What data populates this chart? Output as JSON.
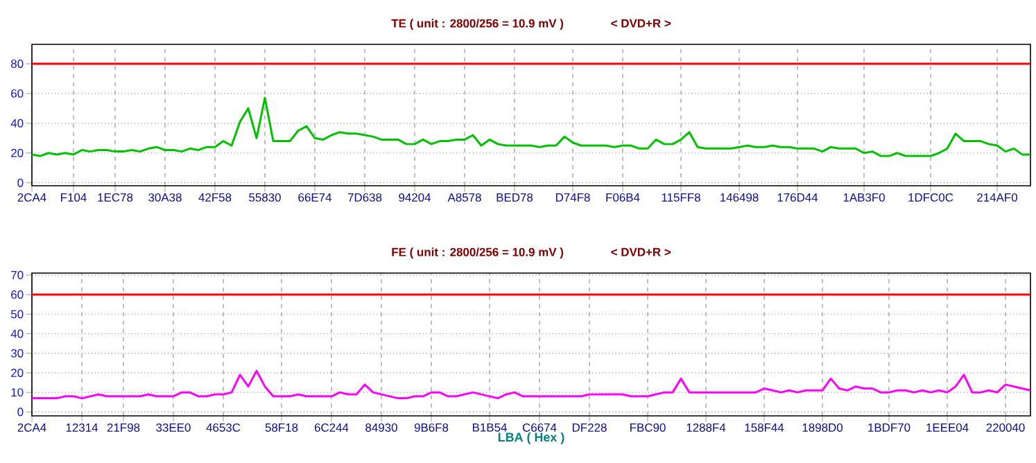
{
  "chart_data": [
    {
      "type": "line",
      "title": "TE   ( unit : 2800/256 = 10.9 mV )",
      "subtitle": "< DVD+R >",
      "categories": [
        "2CA4",
        null,
        null,
        null,
        null,
        "F104",
        null,
        null,
        null,
        null,
        "1EC78",
        null,
        null,
        null,
        null,
        null,
        "30A38",
        null,
        null,
        null,
        null,
        null,
        "42F58",
        null,
        null,
        null,
        null,
        null,
        "55830",
        null,
        null,
        null,
        null,
        null,
        "66E74",
        null,
        null,
        null,
        null,
        null,
        "7D638",
        null,
        null,
        null,
        null,
        null,
        "94204",
        null,
        null,
        null,
        null,
        null,
        "A8578",
        null,
        null,
        null,
        null,
        null,
        "BED78",
        null,
        null,
        null,
        null,
        null,
        null,
        "D74F8",
        null,
        null,
        null,
        null,
        null,
        "F06B4",
        null,
        null,
        null,
        null,
        null,
        null,
        "115FF8",
        null,
        null,
        null,
        null,
        null,
        null,
        "146498",
        null,
        null,
        null,
        null,
        null,
        null,
        "176D44",
        null,
        null,
        null,
        null,
        null,
        null,
        null,
        "1AB3F0",
        null,
        null,
        null,
        null,
        null,
        null,
        null,
        "1DFC0C",
        null,
        null,
        null,
        null,
        null,
        null,
        null,
        "214AF0",
        null,
        null,
        null,
        null
      ],
      "series": [
        {
          "color": "#00c000",
          "values": [
            19,
            18,
            20,
            19,
            20,
            19,
            22,
            21,
            22,
            22,
            21,
            21,
            22,
            21,
            23,
            24,
            22,
            22,
            21,
            23,
            22,
            24,
            24,
            28,
            25,
            41,
            50,
            30,
            57,
            28,
            28,
            28,
            35,
            38,
            30,
            29,
            32,
            34,
            33,
            33,
            32,
            31,
            29,
            29,
            29,
            26,
            26,
            29,
            26,
            28,
            28,
            29,
            29,
            32,
            25,
            29,
            26,
            25,
            25,
            25,
            25,
            24,
            25,
            25,
            31,
            27,
            25,
            25,
            25,
            25,
            24,
            25,
            25,
            23,
            23,
            29,
            26,
            26,
            29,
            34,
            24,
            23,
            23,
            23,
            23,
            24,
            25,
            24,
            24,
            25,
            24,
            24,
            23,
            23,
            23,
            21,
            24,
            23,
            23,
            23,
            20,
            21,
            18,
            18,
            20,
            18,
            18,
            18,
            18,
            20,
            23,
            33,
            28,
            28,
            28,
            26,
            25,
            21,
            23,
            19,
            19
          ]
        }
      ],
      "ylim": [
        -2,
        93
      ],
      "yticks": [
        0,
        20,
        40,
        60,
        80
      ],
      "grid": true,
      "ref_lines": [
        {
          "axis": "y",
          "value": 80,
          "color": "#ff0000"
        }
      ]
    },
    {
      "type": "line",
      "title": "FE   ( unit : 2800/256 = 10.9 mV )",
      "subtitle": "< DVD+R >",
      "xlabel": "LBA   ( Hex )",
      "categories": [
        "2CA4",
        null,
        null,
        null,
        null,
        null,
        "12314",
        null,
        null,
        null,
        null,
        "21F98",
        null,
        null,
        null,
        null,
        null,
        "33EE0",
        null,
        null,
        null,
        null,
        null,
        "4653C",
        null,
        null,
        null,
        null,
        null,
        null,
        "58F18",
        null,
        null,
        null,
        null,
        null,
        "6C244",
        null,
        null,
        null,
        null,
        null,
        "84930",
        null,
        null,
        null,
        null,
        null,
        "9B6F8",
        null,
        null,
        null,
        null,
        null,
        null,
        "B1B54",
        null,
        null,
        null,
        null,
        null,
        "C6674",
        null,
        null,
        null,
        null,
        null,
        "DF228",
        null,
        null,
        null,
        null,
        null,
        null,
        "FBC90",
        null,
        null,
        null,
        null,
        null,
        null,
        "1288F4",
        null,
        null,
        null,
        null,
        null,
        null,
        "158F44",
        null,
        null,
        null,
        null,
        null,
        null,
        "1898D0",
        null,
        null,
        null,
        null,
        null,
        null,
        null,
        "1BDF70",
        null,
        null,
        null,
        null,
        null,
        null,
        "1EEE04",
        null,
        null,
        null,
        null,
        null,
        null,
        "220040",
        null,
        null,
        null
      ],
      "series": [
        {
          "color": "#ff00ff",
          "values": [
            7,
            7,
            7,
            7,
            8,
            8,
            7,
            8,
            9,
            8,
            8,
            8,
            8,
            8,
            9,
            8,
            8,
            8,
            10,
            10,
            8,
            8,
            9,
            9,
            10,
            19,
            13,
            21,
            13,
            8,
            8,
            8,
            9,
            8,
            8,
            8,
            8,
            10,
            9,
            9,
            14,
            10,
            9,
            8,
            7,
            7,
            8,
            8,
            10,
            10,
            8,
            8,
            9,
            10,
            9,
            8,
            7,
            9,
            10,
            8,
            8,
            8,
            8,
            8,
            8,
            8,
            8,
            9,
            9,
            9,
            9,
            9,
            8,
            8,
            8,
            9,
            10,
            10,
            17,
            10,
            10,
            10,
            10,
            10,
            10,
            10,
            10,
            10,
            12,
            11,
            10,
            11,
            10,
            11,
            11,
            11,
            17,
            12,
            11,
            13,
            12,
            12,
            10,
            10,
            11,
            11,
            10,
            11,
            10,
            11,
            10,
            13,
            19,
            10,
            10,
            11,
            10,
            14,
            13,
            12,
            11
          ]
        }
      ],
      "ylim": [
        -2,
        71
      ],
      "yticks": [
        0,
        10,
        20,
        30,
        40,
        50,
        60,
        70
      ],
      "grid": true,
      "ref_lines": [
        {
          "axis": "y",
          "value": 60,
          "color": "#ff0000"
        }
      ]
    }
  ]
}
